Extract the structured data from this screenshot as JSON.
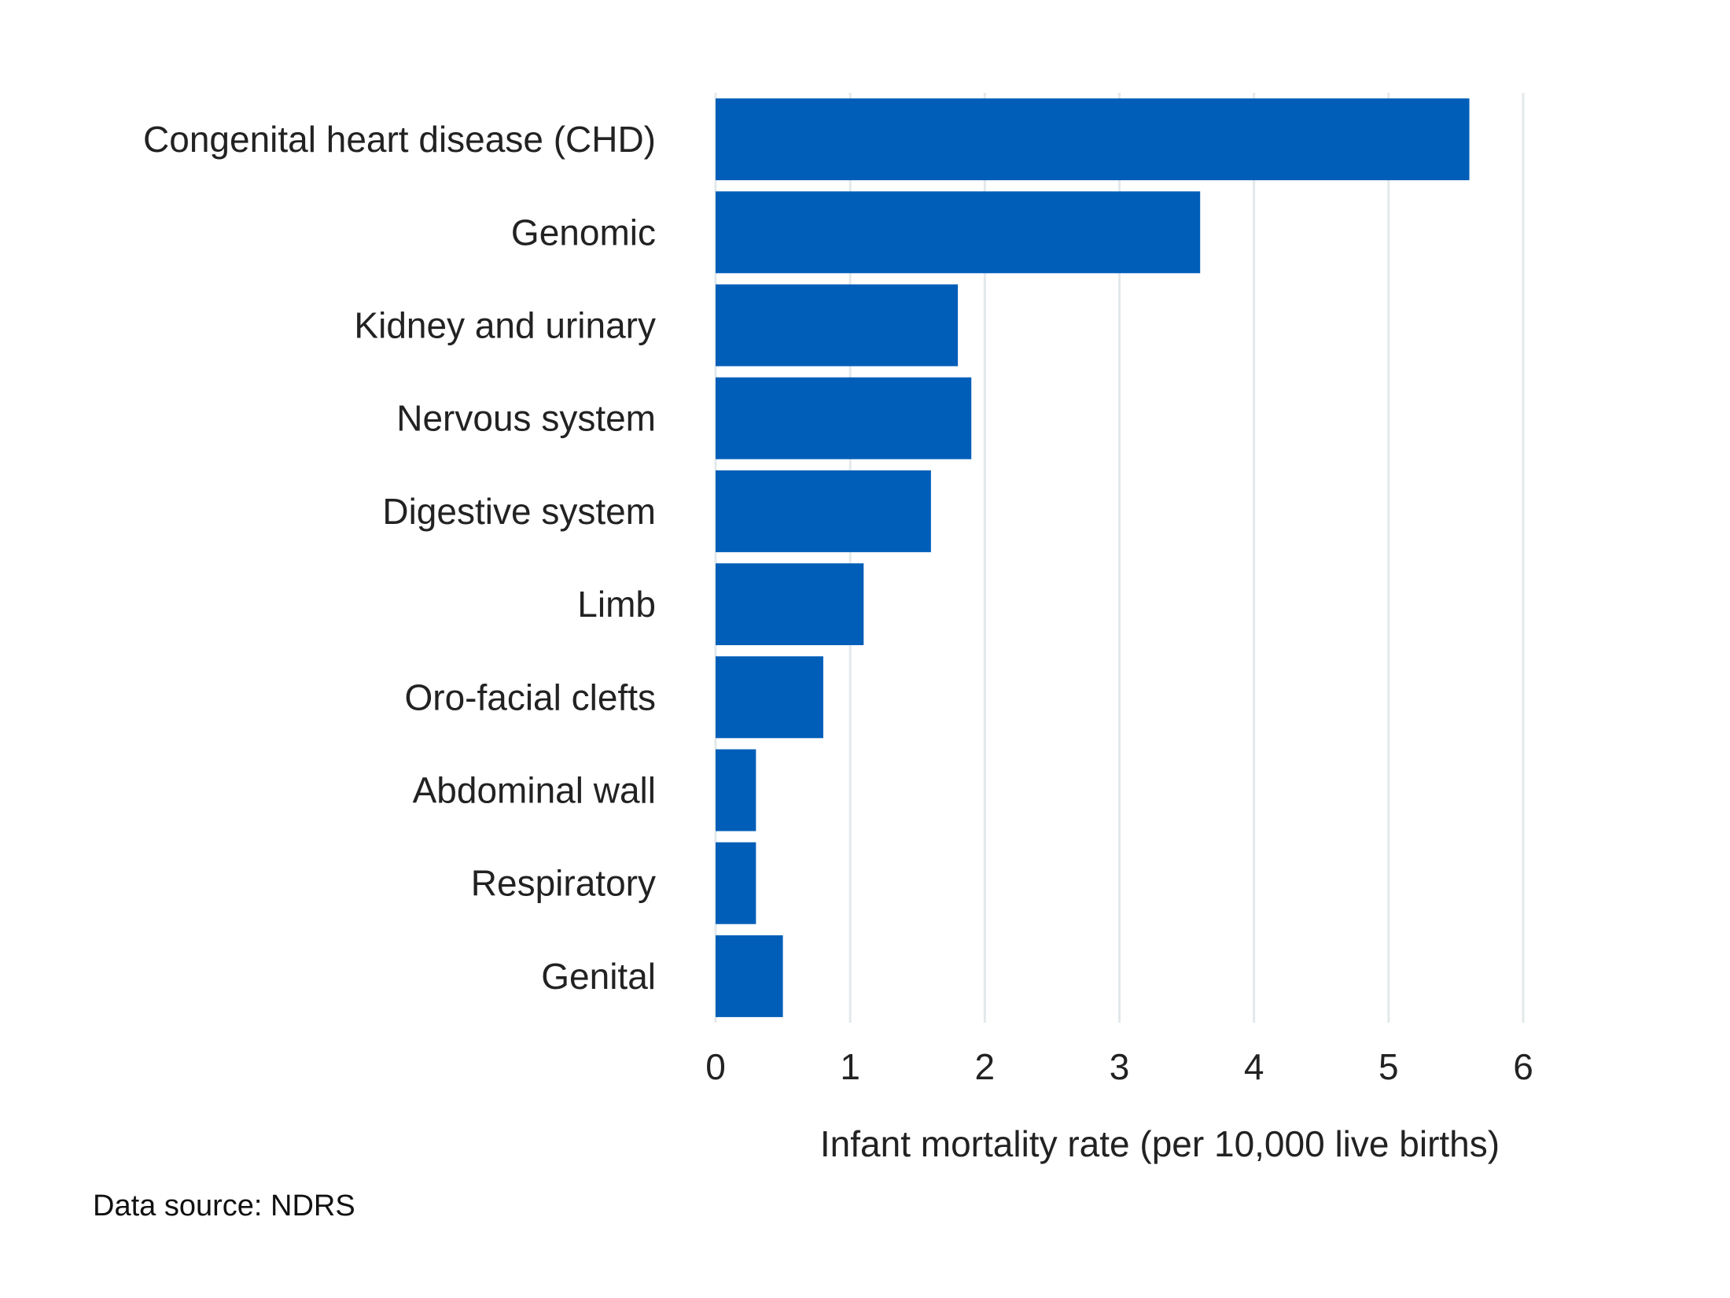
{
  "chart_data": {
    "type": "bar",
    "orientation": "horizontal",
    "categories": [
      "Congenital heart disease (CHD)",
      "Genomic",
      "Kidney and urinary",
      "Nervous system",
      "Digestive system",
      "Limb",
      "Oro-facial clefts",
      "Abdominal wall",
      "Respiratory",
      "Genital"
    ],
    "values": [
      5.6,
      3.6,
      1.8,
      1.9,
      1.6,
      1.1,
      0.8,
      0.3,
      0.3,
      0.5
    ],
    "xlabel": "Infant mortality rate (per 10,000 live births)",
    "ylabel": "",
    "xlim": [
      0,
      6
    ],
    "xticks": [
      "0",
      "1",
      "2",
      "3",
      "4",
      "5",
      "6"
    ],
    "grid": "vertical",
    "bar_color": "#005EB8",
    "grid_color": "#e3e9eb"
  },
  "source": "Data source: NDRS"
}
